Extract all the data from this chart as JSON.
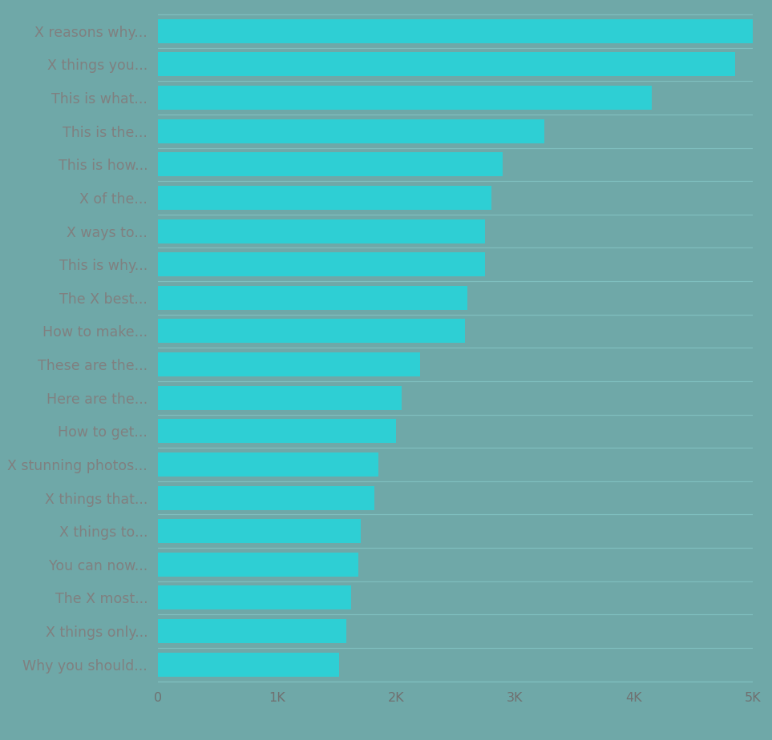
{
  "categories": [
    "X reasons why...",
    "X things you...",
    "This is what...",
    "This is the...",
    "This is how...",
    "X of the...",
    "X ways to...",
    "This is why...",
    "The X best...",
    "How to make...",
    "These are the...",
    "Here are the...",
    "How to get...",
    "X stunning photos...",
    "X things that...",
    "X things to...",
    "You can now...",
    "The X most...",
    "X things only...",
    "Why you should..."
  ],
  "values": [
    5000,
    4850,
    4150,
    3250,
    2900,
    2800,
    2750,
    2750,
    2600,
    2580,
    2200,
    2050,
    2000,
    1850,
    1820,
    1700,
    1680,
    1620,
    1580,
    1520
  ],
  "bar_color": "#2ecfd4",
  "background_color": "#6fa8a8",
  "separator_color": "#7fbfbf",
  "xlabel": "",
  "ylabel": "",
  "xlim": [
    0,
    5000
  ],
  "xtick_labels": [
    "0",
    "1K",
    "2K",
    "3K",
    "4K",
    "5K"
  ],
  "xtick_values": [
    0,
    1000,
    2000,
    3000,
    4000,
    5000
  ],
  "tick_color": "#707070",
  "label_color": "#808080",
  "label_fontsize": 12.5,
  "tick_fontsize": 11.5
}
